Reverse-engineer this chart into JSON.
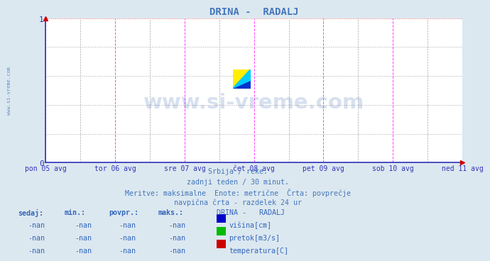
{
  "title": "DRINA -  RADALJ",
  "title_color": "#4477bb",
  "bg_color": "#dce8f0",
  "plot_bg_color": "#ffffff",
  "xlim": [
    0,
    1
  ],
  "ylim": [
    0,
    1
  ],
  "yticks": [
    0,
    1
  ],
  "xtick_labels": [
    "pon 05 avg",
    "tor 06 avg",
    "sre 07 avg",
    "čet 08 avg",
    "pet 09 avg",
    "sob 10 avg",
    "ned 11 avg"
  ],
  "xtick_positions": [
    0.0,
    0.1667,
    0.3333,
    0.5,
    0.6667,
    0.8333,
    1.0
  ],
  "vline_color_major": "#ff44ff",
  "vline_color_minor": "#aaaaaa",
  "hgrid_color_major": "#ff8888",
  "hgrid_color_minor": "#aaaaaa",
  "axis_color": "#3333bb",
  "watermark_text": "www.si-vreme.com",
  "watermark_color": "#2255aa",
  "watermark_alpha": 0.18,
  "subtitle_lines": [
    "Srbija / reke.",
    "zadnji teden / 30 minut.",
    "Meritve: maksimalne  Enote: metrične  Črta: povprečje",
    "navpična črta - razdelek 24 ur"
  ],
  "subtitle_color": "#4477bb",
  "table_header": [
    "sedaj:",
    "min.:",
    "povpr.:",
    "maks.:",
    "DRINA -   RADALJ"
  ],
  "table_rows": [
    [
      "-nan",
      "-nan",
      "-nan",
      "-nan",
      "višina[cm]",
      "#0000cc"
    ],
    [
      "-nan",
      "-nan",
      "-nan",
      "-nan",
      "pretok[m3/s]",
      "#00bb00"
    ],
    [
      "-nan",
      "-nan",
      "-nan",
      "-nan",
      "temperatura[C]",
      "#cc0000"
    ]
  ],
  "table_color": "#3366bb",
  "left_label": "www.si-vreme.com",
  "left_label_color": "#4477bb"
}
